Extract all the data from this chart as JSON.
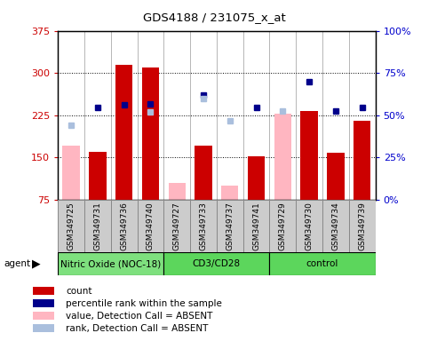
{
  "title": "GDS4188 / 231075_x_at",
  "samples": [
    "GSM349725",
    "GSM349731",
    "GSM349736",
    "GSM349740",
    "GSM349727",
    "GSM349733",
    "GSM349737",
    "GSM349741",
    "GSM349729",
    "GSM349730",
    "GSM349734",
    "GSM349739"
  ],
  "groups": [
    {
      "label": "Nitric Oxide (NOC-18)",
      "start": 0,
      "end": 4,
      "color": "#7EE07E"
    },
    {
      "label": "CD3/CD28",
      "start": 4,
      "end": 8,
      "color": "#5CD65C"
    },
    {
      "label": "control",
      "start": 8,
      "end": 12,
      "color": "#5CD65C"
    }
  ],
  "count_values": [
    null,
    160,
    315,
    310,
    null,
    170,
    null,
    152,
    null,
    232,
    158,
    215
  ],
  "absent_value": [
    170,
    null,
    null,
    null,
    105,
    null,
    100,
    null,
    228,
    null,
    null,
    null
  ],
  "rank_present": [
    null,
    238,
    243,
    245,
    null,
    260,
    null,
    238,
    null,
    285,
    233,
    238
  ],
  "rank_absent": [
    207,
    null,
    null,
    230,
    null,
    255,
    215,
    null,
    232,
    null,
    null,
    null
  ],
  "ylim_left": [
    75,
    375
  ],
  "ylim_right": [
    0,
    100
  ],
  "yticks_left": [
    75,
    150,
    225,
    300,
    375
  ],
  "yticks_right": [
    0,
    25,
    50,
    75,
    100
  ],
  "bar_color": "#CC0000",
  "absent_bar_color": "#FFB6C1",
  "rank_present_color": "#00008B",
  "rank_absent_color": "#AABFDD",
  "bg_color": "#FFFFFF",
  "tick_label_color_left": "#CC0000",
  "tick_label_color_right": "#0000CC",
  "xticklabel_bg": "#CCCCCC",
  "grid_dotted_values": [
    150,
    225,
    300
  ]
}
